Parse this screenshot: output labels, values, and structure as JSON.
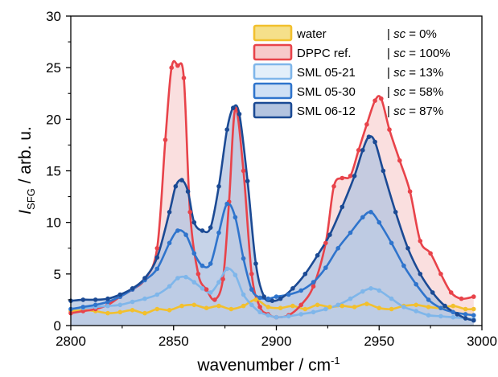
{
  "chart_data": {
    "type": "area",
    "ylabel_main": "I",
    "ylabel_sub": "SFG",
    "ylabel_rest": " / arb. u.",
    "xlabel_main": "wavenumber / cm",
    "xlabel_sup": "-1",
    "xlim": [
      2800,
      3000
    ],
    "ylim": [
      0,
      30
    ],
    "xticks": [
      "2800",
      "2850",
      "2900",
      "2950",
      "3000"
    ],
    "yticks": [
      "0",
      "5",
      "10",
      "15",
      "20",
      "25",
      "30"
    ],
    "legend_position": "top-right",
    "grid": false,
    "series": [
      {
        "name": "water",
        "sc_label": "sc",
        "sc_value": "= 0%",
        "color": "#f2c02e",
        "fill": "#f5e08a",
        "x": [
          2800,
          2806,
          2812,
          2818,
          2824,
          2830,
          2836,
          2842,
          2848,
          2854,
          2860,
          2866,
          2872,
          2878,
          2884,
          2890,
          2896,
          2902,
          2908,
          2914,
          2920,
          2926,
          2932,
          2938,
          2944,
          2950,
          2956,
          2962,
          2968,
          2974,
          2980,
          2986,
          2992,
          2996
        ],
        "y": [
          1.4,
          1.5,
          1.4,
          1.2,
          1.3,
          1.5,
          1.2,
          1.6,
          1.5,
          1.9,
          2.0,
          1.7,
          1.9,
          1.6,
          1.9,
          2.5,
          1.8,
          1.7,
          1.9,
          1.6,
          2.0,
          1.8,
          1.9,
          1.8,
          2.1,
          1.7,
          1.6,
          1.9,
          2.0,
          1.8,
          1.7,
          1.9,
          1.6,
          1.6
        ]
      },
      {
        "name": "DPPC ref.",
        "sc_label": "sc",
        "sc_value": "= 100%",
        "color": "#e8434a",
        "fill": "#f7caca",
        "x": [
          2800,
          2806,
          2812,
          2818,
          2824,
          2830,
          2836,
          2842,
          2846,
          2849,
          2852,
          2855,
          2858,
          2862,
          2866,
          2870,
          2874,
          2877,
          2880,
          2884,
          2888,
          2892,
          2896,
          2900,
          2906,
          2912,
          2918,
          2924,
          2928,
          2932,
          2936,
          2940,
          2944,
          2948,
          2951,
          2955,
          2960,
          2965,
          2970,
          2975,
          2980,
          2985,
          2990,
          2996
        ],
        "y": [
          1.2,
          1.4,
          1.6,
          2.0,
          2.8,
          3.5,
          4.5,
          7.5,
          18.0,
          25.0,
          25.2,
          24.0,
          11.0,
          5.0,
          3.5,
          2.5,
          4.5,
          12.0,
          21.0,
          15.0,
          5.0,
          1.8,
          1.1,
          0.8,
          1.0,
          2.0,
          3.8,
          8.0,
          13.5,
          14.3,
          14.5,
          17.0,
          19.5,
          21.8,
          22.0,
          19.0,
          16.0,
          13.0,
          8.2,
          7.0,
          5.0,
          3.2,
          2.6,
          2.8
        ]
      },
      {
        "name": "SML 05-21",
        "sc_label": "sc",
        "sc_value": "=  13%",
        "color": "#7fb6ea",
        "fill": "#e3effa",
        "x": [
          2800,
          2806,
          2812,
          2818,
          2824,
          2830,
          2836,
          2842,
          2848,
          2852,
          2856,
          2860,
          2864,
          2868,
          2872,
          2876,
          2880,
          2884,
          2888,
          2892,
          2896,
          2900,
          2906,
          2912,
          2918,
          2924,
          2930,
          2936,
          2942,
          2946,
          2950,
          2956,
          2962,
          2968,
          2974,
          2980,
          2986,
          2992,
          2996
        ],
        "y": [
          1.6,
          1.7,
          1.8,
          1.9,
          2.0,
          2.3,
          2.6,
          3.0,
          3.8,
          4.6,
          4.7,
          4.2,
          3.6,
          3.2,
          4.2,
          5.5,
          4.9,
          3.0,
          2.0,
          1.3,
          1.0,
          0.8,
          0.9,
          1.1,
          1.3,
          1.6,
          2.0,
          2.6,
          3.3,
          3.6,
          3.4,
          2.6,
          1.8,
          1.4,
          1.0,
          0.9,
          0.8,
          0.7,
          0.6
        ]
      },
      {
        "name": "SML 05-30",
        "sc_label": "sc",
        "sc_value": "= 58%",
        "color": "#2f74cc",
        "fill": "#cfe0f5",
        "x": [
          2800,
          2806,
          2812,
          2818,
          2824,
          2830,
          2836,
          2842,
          2848,
          2852,
          2856,
          2860,
          2864,
          2868,
          2872,
          2876,
          2880,
          2884,
          2888,
          2892,
          2896,
          2900,
          2906,
          2912,
          2918,
          2924,
          2930,
          2936,
          2942,
          2946,
          2950,
          2956,
          2962,
          2968,
          2974,
          2980,
          2986,
          2992,
          2996
        ],
        "y": [
          1.6,
          1.8,
          2.0,
          2.3,
          2.8,
          3.5,
          4.4,
          5.5,
          8.0,
          9.2,
          8.8,
          7.0,
          5.8,
          6.0,
          9.0,
          11.8,
          10.5,
          6.5,
          3.5,
          2.7,
          2.6,
          2.8,
          3.0,
          3.4,
          4.2,
          5.6,
          7.5,
          9.0,
          10.5,
          11.0,
          10.0,
          8.0,
          5.8,
          4.0,
          2.5,
          1.7,
          1.3,
          1.1,
          1.0
        ]
      },
      {
        "name": "SML 06-12",
        "sc_label": "sc",
        "sc_value": "= 87%",
        "color": "#1b4a94",
        "fill": "#b3c4e0",
        "x": [
          2800,
          2806,
          2812,
          2818,
          2824,
          2830,
          2836,
          2842,
          2848,
          2851,
          2854,
          2857,
          2860,
          2864,
          2868,
          2872,
          2876,
          2879,
          2882,
          2886,
          2890,
          2894,
          2898,
          2902,
          2908,
          2914,
          2920,
          2926,
          2932,
          2938,
          2942,
          2945,
          2948,
          2952,
          2958,
          2964,
          2970,
          2976,
          2982,
          2988,
          2992,
          2996
        ],
        "y": [
          2.4,
          2.5,
          2.5,
          2.6,
          3.0,
          3.6,
          4.6,
          6.6,
          11.0,
          13.5,
          14.1,
          13.0,
          10.0,
          9.2,
          9.5,
          13.5,
          19.0,
          21.1,
          20.5,
          14.0,
          6.0,
          2.8,
          2.4,
          2.6,
          3.6,
          5.0,
          6.8,
          8.8,
          11.5,
          14.5,
          17.0,
          18.3,
          17.8,
          15.0,
          11.0,
          7.5,
          5.0,
          3.2,
          1.9,
          1.1,
          0.7,
          0.5
        ]
      }
    ]
  }
}
